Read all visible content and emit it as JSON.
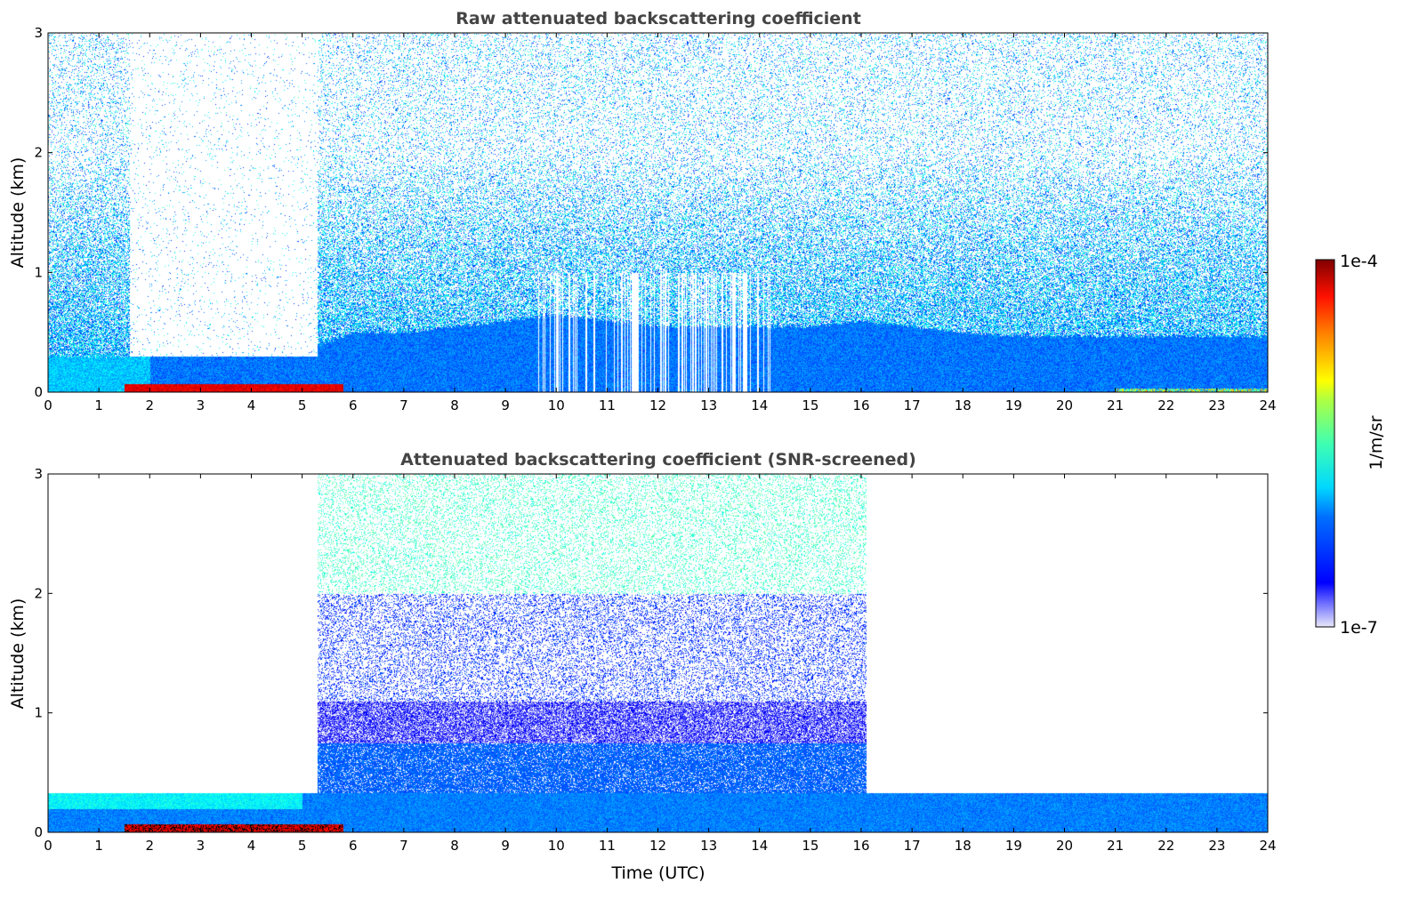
{
  "chart_data": [
    {
      "type": "heatmap",
      "title": "Raw attenuated backscattering coefficient",
      "xlabel": "",
      "ylabel": "Altitude (km)",
      "xlim": [
        0,
        24
      ],
      "ylim": [
        0,
        3
      ],
      "xticks": [
        "0",
        "1",
        "2",
        "3",
        "4",
        "5",
        "6",
        "7",
        "8",
        "9",
        "10",
        "11",
        "12",
        "13",
        "14",
        "15",
        "16",
        "17",
        "18",
        "19",
        "20",
        "21",
        "22",
        "23",
        "24"
      ],
      "yticks": [
        "0",
        "1",
        "2",
        "3"
      ],
      "boundary_layer_top_km_hourly": [
        0.3,
        0.3,
        0.3,
        0.25,
        0.3,
        0.35,
        0.5,
        0.5,
        0.55,
        0.6,
        0.65,
        0.6,
        0.55,
        0.55,
        0.55,
        0.55,
        0.6,
        0.55,
        0.5,
        0.47,
        0.47,
        0.47,
        0.47,
        0.47,
        0.47
      ],
      "surface_aerosol_layer_hours": [
        1.5,
        5.8
      ],
      "clear_gap_hours": [
        1.6,
        5.3
      ]
    },
    {
      "type": "heatmap",
      "title": "Attenuated backscattering coefficient (SNR-screened)",
      "xlabel": "Time (UTC)",
      "ylabel": "Altitude (km)",
      "xlim": [
        0,
        24
      ],
      "ylim": [
        0,
        3
      ],
      "xticks": [
        "0",
        "1",
        "2",
        "3",
        "4",
        "5",
        "6",
        "7",
        "8",
        "9",
        "10",
        "11",
        "12",
        "13",
        "14",
        "15",
        "16",
        "17",
        "18",
        "19",
        "20",
        "21",
        "22",
        "23",
        "24"
      ],
      "yticks": [
        "0",
        "1",
        "2",
        "3"
      ],
      "boundary_layer_top_km": 0.33,
      "daytime_signal_hours": [
        5.3,
        16.1
      ],
      "daytime_layer_top_km": 0.75
    }
  ],
  "colorbar": {
    "label": "1/m/sr",
    "max_label": "1e-4",
    "min_label": "1e-7",
    "range": [
      1e-07,
      0.0001
    ]
  }
}
